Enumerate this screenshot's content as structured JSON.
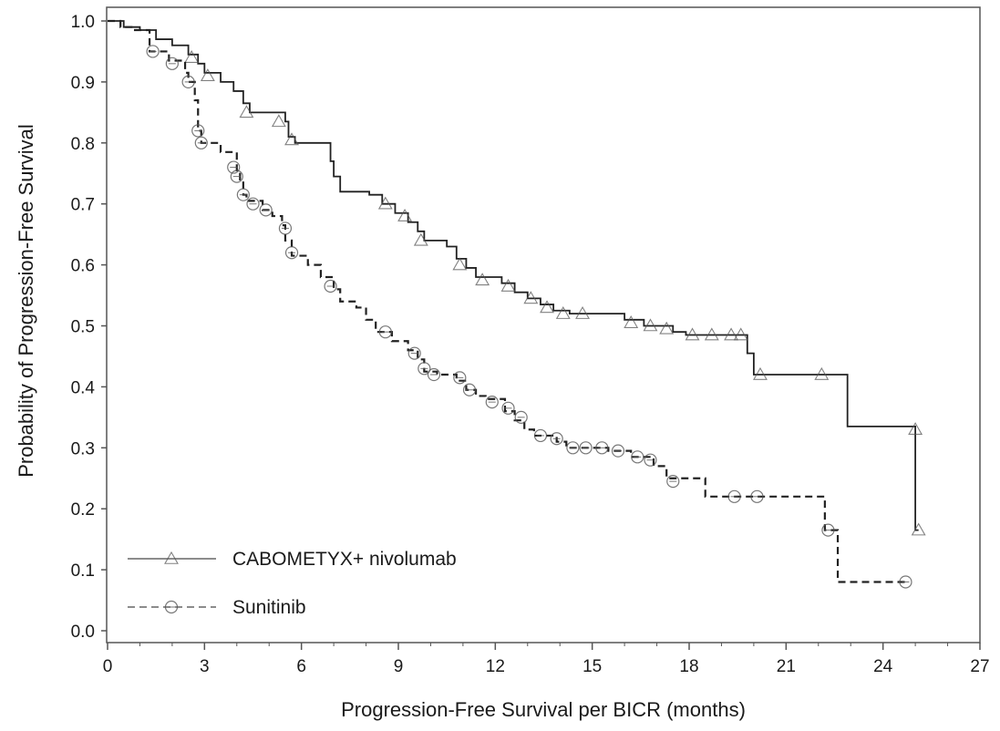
{
  "chart_data": {
    "type": "line",
    "subtype": "kaplan-meier step",
    "title": "",
    "xlabel": "Progression-Free Survival per BICR (months)",
    "ylabel": "Probability of Progression-Free Survival",
    "xlim": [
      0,
      27
    ],
    "ylim": [
      0,
      1.0
    ],
    "xticks": [
      "0",
      "3",
      "6",
      "9",
      "12",
      "15",
      "18",
      "21",
      "24",
      "27"
    ],
    "yticks": [
      "0.0",
      "0.1",
      "0.2",
      "0.3",
      "0.4",
      "0.5",
      "0.6",
      "0.7",
      "0.8",
      "0.9",
      "1.0"
    ],
    "grid": false,
    "legend_position": "bottom-left",
    "series": [
      {
        "name": "CABOMETYX+ nivolumab",
        "color": "#222222",
        "line_style": "solid",
        "censor_marker": "triangle",
        "steps": [
          [
            0,
            1.0
          ],
          [
            0.5,
            0.99
          ],
          [
            1.0,
            0.985
          ],
          [
            1.5,
            0.97
          ],
          [
            2.0,
            0.96
          ],
          [
            2.5,
            0.945
          ],
          [
            2.8,
            0.93
          ],
          [
            3.0,
            0.915
          ],
          [
            3.5,
            0.9
          ],
          [
            3.9,
            0.885
          ],
          [
            4.2,
            0.865
          ],
          [
            4.4,
            0.85
          ],
          [
            5.5,
            0.835
          ],
          [
            5.6,
            0.81
          ],
          [
            5.8,
            0.8
          ],
          [
            6.9,
            0.77
          ],
          [
            7.0,
            0.745
          ],
          [
            7.2,
            0.72
          ],
          [
            8.1,
            0.715
          ],
          [
            8.5,
            0.7
          ],
          [
            8.9,
            0.685
          ],
          [
            9.3,
            0.67
          ],
          [
            9.6,
            0.655
          ],
          [
            9.8,
            0.64
          ],
          [
            10.5,
            0.63
          ],
          [
            10.8,
            0.61
          ],
          [
            11.1,
            0.595
          ],
          [
            11.4,
            0.58
          ],
          [
            12.2,
            0.57
          ],
          [
            12.6,
            0.555
          ],
          [
            13.0,
            0.545
          ],
          [
            13.4,
            0.535
          ],
          [
            13.8,
            0.525
          ],
          [
            14.3,
            0.52
          ],
          [
            16.0,
            0.51
          ],
          [
            16.6,
            0.5
          ],
          [
            17.5,
            0.49
          ],
          [
            17.9,
            0.485
          ],
          [
            19.8,
            0.455
          ],
          [
            20.0,
            0.42
          ],
          [
            22.9,
            0.335
          ],
          [
            25.0,
            0.165
          ],
          [
            25.1,
            0.165
          ]
        ],
        "censored": [
          [
            2.6,
            0.94
          ],
          [
            3.1,
            0.91
          ],
          [
            4.3,
            0.85
          ],
          [
            5.3,
            0.835
          ],
          [
            5.7,
            0.805
          ],
          [
            8.6,
            0.7
          ],
          [
            9.2,
            0.68
          ],
          [
            9.7,
            0.64
          ],
          [
            10.9,
            0.6
          ],
          [
            11.6,
            0.575
          ],
          [
            12.4,
            0.565
          ],
          [
            13.1,
            0.545
          ],
          [
            13.6,
            0.53
          ],
          [
            14.1,
            0.52
          ],
          [
            14.7,
            0.52
          ],
          [
            16.2,
            0.505
          ],
          [
            16.8,
            0.5
          ],
          [
            17.3,
            0.495
          ],
          [
            18.1,
            0.485
          ],
          [
            18.7,
            0.485
          ],
          [
            19.3,
            0.485
          ],
          [
            19.6,
            0.485
          ],
          [
            20.2,
            0.42
          ],
          [
            22.1,
            0.42
          ],
          [
            25.0,
            0.33
          ],
          [
            25.1,
            0.165
          ]
        ]
      },
      {
        "name": "Sunitinib",
        "color": "#222222",
        "line_style": "dashed",
        "censor_marker": "circle",
        "steps": [
          [
            0,
            1.0
          ],
          [
            0.4,
            0.99
          ],
          [
            0.8,
            0.985
          ],
          [
            1.3,
            0.95
          ],
          [
            1.9,
            0.935
          ],
          [
            2.4,
            0.915
          ],
          [
            2.5,
            0.9
          ],
          [
            2.7,
            0.87
          ],
          [
            2.8,
            0.82
          ],
          [
            2.9,
            0.8
          ],
          [
            3.5,
            0.785
          ],
          [
            4.0,
            0.755
          ],
          [
            4.1,
            0.74
          ],
          [
            4.2,
            0.715
          ],
          [
            4.3,
            0.705
          ],
          [
            4.8,
            0.69
          ],
          [
            5.1,
            0.68
          ],
          [
            5.4,
            0.665
          ],
          [
            5.5,
            0.64
          ],
          [
            5.7,
            0.615
          ],
          [
            6.2,
            0.6
          ],
          [
            6.6,
            0.58
          ],
          [
            7.0,
            0.56
          ],
          [
            7.2,
            0.54
          ],
          [
            7.7,
            0.53
          ],
          [
            8.0,
            0.51
          ],
          [
            8.3,
            0.49
          ],
          [
            8.8,
            0.475
          ],
          [
            9.3,
            0.46
          ],
          [
            9.6,
            0.445
          ],
          [
            9.8,
            0.425
          ],
          [
            10.2,
            0.42
          ],
          [
            10.8,
            0.41
          ],
          [
            11.1,
            0.395
          ],
          [
            11.4,
            0.385
          ],
          [
            11.7,
            0.38
          ],
          [
            12.3,
            0.36
          ],
          [
            12.6,
            0.345
          ],
          [
            12.9,
            0.33
          ],
          [
            13.2,
            0.32
          ],
          [
            13.9,
            0.31
          ],
          [
            14.2,
            0.3
          ],
          [
            15.5,
            0.295
          ],
          [
            16.2,
            0.285
          ],
          [
            16.9,
            0.27
          ],
          [
            17.3,
            0.25
          ],
          [
            18.5,
            0.22
          ],
          [
            22.2,
            0.165
          ],
          [
            22.6,
            0.08
          ],
          [
            24.8,
            0.08
          ]
        ],
        "censored": [
          [
            1.4,
            0.95
          ],
          [
            2.0,
            0.93
          ],
          [
            2.5,
            0.9
          ],
          [
            2.8,
            0.82
          ],
          [
            2.9,
            0.8
          ],
          [
            3.9,
            0.76
          ],
          [
            4.0,
            0.745
          ],
          [
            4.2,
            0.715
          ],
          [
            4.5,
            0.7
          ],
          [
            4.9,
            0.69
          ],
          [
            5.5,
            0.66
          ],
          [
            5.7,
            0.62
          ],
          [
            6.9,
            0.565
          ],
          [
            8.6,
            0.49
          ],
          [
            9.5,
            0.455
          ],
          [
            9.8,
            0.43
          ],
          [
            10.1,
            0.42
          ],
          [
            10.9,
            0.415
          ],
          [
            11.2,
            0.395
          ],
          [
            11.9,
            0.375
          ],
          [
            12.4,
            0.365
          ],
          [
            12.8,
            0.35
          ],
          [
            13.4,
            0.32
          ],
          [
            13.9,
            0.315
          ],
          [
            14.4,
            0.3
          ],
          [
            14.8,
            0.3
          ],
          [
            15.3,
            0.3
          ],
          [
            15.8,
            0.295
          ],
          [
            16.4,
            0.285
          ],
          [
            16.8,
            0.28
          ],
          [
            17.5,
            0.245
          ],
          [
            19.4,
            0.22
          ],
          [
            20.1,
            0.22
          ],
          [
            22.3,
            0.165
          ],
          [
            24.7,
            0.08
          ]
        ]
      }
    ]
  }
}
